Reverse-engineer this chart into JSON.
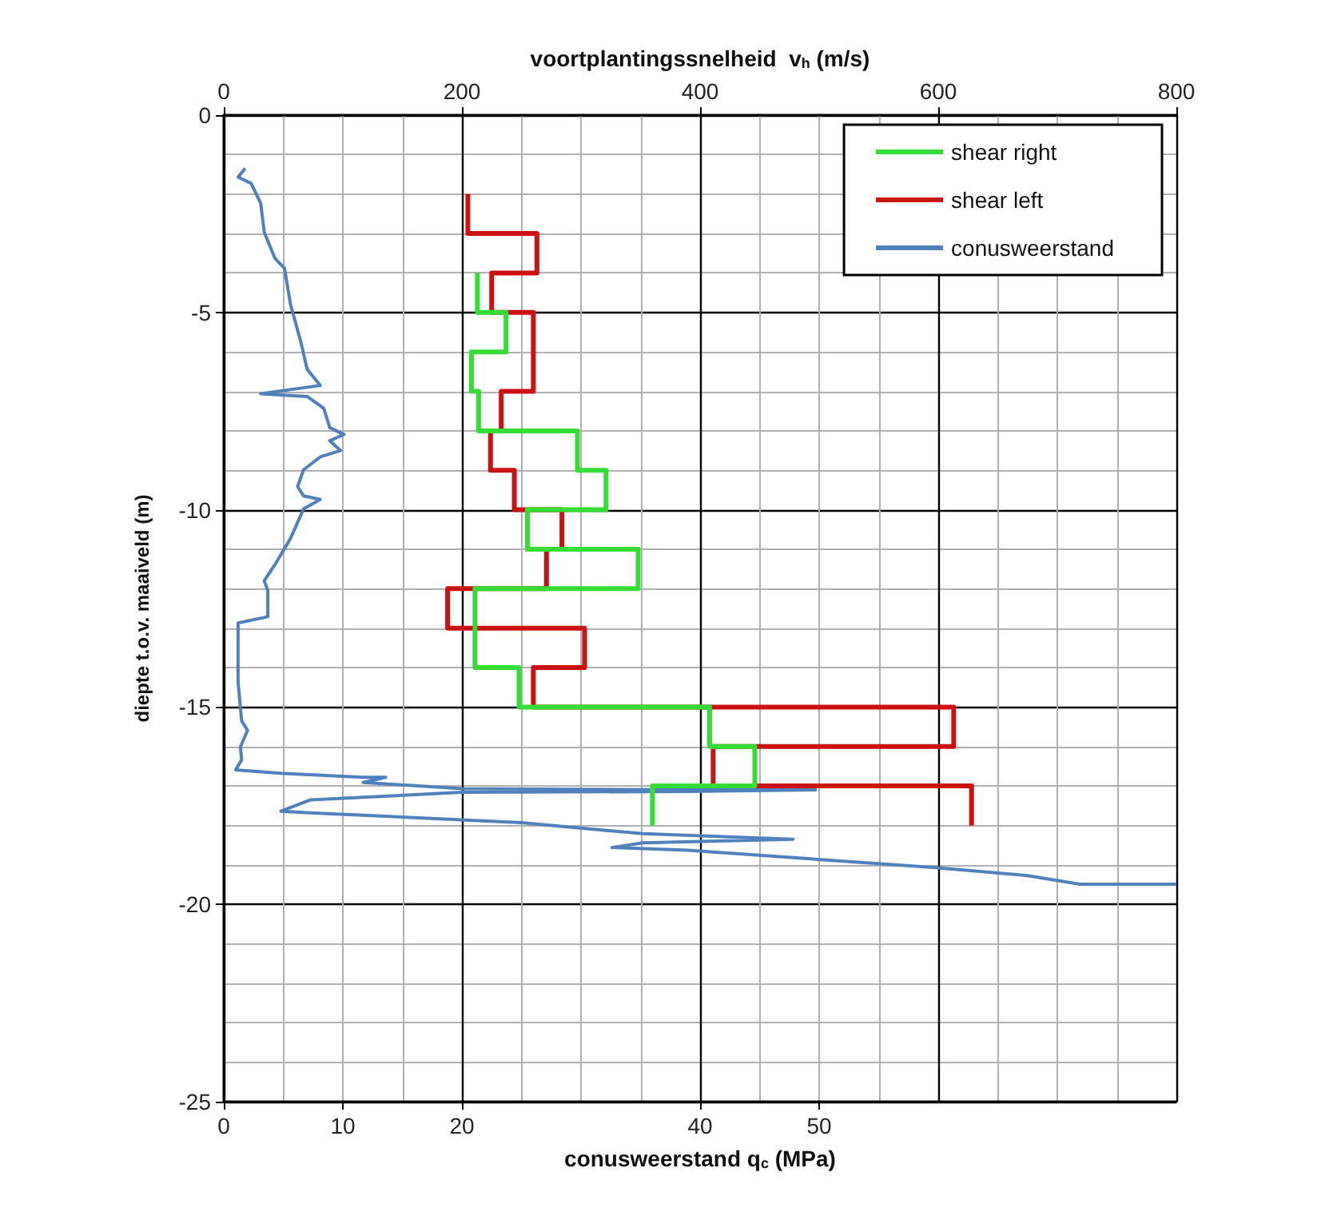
{
  "chart_data": {
    "type": "line",
    "xlabel": "conusweerstand q$_{c}$ (MPa)",
    "x2label": "voortplantingssnelheid  v$_{h}$ (m/s)",
    "ylabel": "diepte t.o.v. maaiveld (m)",
    "xlim": [
      0,
      80
    ],
    "xticks": [
      0,
      10,
      20,
      40,
      50
    ],
    "x2lim": [
      0,
      800
    ],
    "x2ticks": [
      0,
      200,
      400,
      600,
      800
    ],
    "ylim": [
      -25,
      0
    ],
    "yticks": [
      0,
      -5,
      -10,
      -15,
      -20,
      -25
    ],
    "grid": true,
    "legend": "top right",
    "series": [
      {
        "name": "shear right",
        "color": "#33dd33",
        "axis": "x2",
        "x": [
          213,
          213,
          237,
          237,
          208,
          208,
          214,
          214,
          297,
          297,
          321,
          321,
          255,
          255,
          348,
          348,
          211,
          211,
          248,
          248,
          408,
          408,
          446,
          446,
          360,
          360
        ],
        "values": [
          -4,
          -5,
          -5,
          -6,
          -6,
          -7,
          -7,
          -8,
          -8,
          -9,
          -9,
          -10,
          -10,
          -11,
          -11,
          -12,
          -12,
          -14,
          -14,
          -15,
          -15,
          -16,
          -16,
          -17,
          -17,
          -18
        ]
      },
      {
        "name": "shear left",
        "color": "#cc1111",
        "axis": "x2",
        "x": [
          205,
          205,
          263,
          263,
          225,
          225,
          260,
          260,
          233,
          233,
          224,
          224,
          244,
          244,
          284,
          284,
          271,
          271,
          188,
          188,
          303,
          303,
          260,
          260,
          613,
          613,
          411,
          411,
          628,
          628
        ],
        "values": [
          -2,
          -3,
          -3,
          -4,
          -4,
          -5,
          -5,
          -7,
          -7,
          -8,
          -8,
          -9,
          -9,
          -10,
          -10,
          -11,
          -11,
          -12,
          -12,
          -13,
          -13,
          -14,
          -14,
          -15,
          -15,
          -16,
          -16,
          -17,
          -17,
          -18
        ]
      },
      {
        "name": "conusweerstand",
        "color": "#4f81bd",
        "x": [
          1.8,
          1.2,
          2.3,
          3.1,
          3.4,
          4.3,
          5.1,
          5.6,
          6.5,
          7.0,
          8.1,
          3.1,
          7.0,
          8.4,
          8.9,
          10.1,
          8.9,
          9.8,
          8.1,
          6.7,
          6.2,
          6.7,
          8.1,
          6.7,
          5.6,
          4.3,
          3.4,
          3.7,
          3.7,
          1.2,
          1.2,
          1.5,
          2.0,
          1.4,
          1.5,
          1.0,
          4.8,
          11.7,
          13.6,
          11.7,
          20.0,
          40.2,
          49.7,
          39.0,
          20.0,
          7.3,
          4.8,
          7.3,
          25.0,
          35.2,
          47.8,
          35.2,
          32.6,
          39.0,
          59.8,
          67.5,
          71.9,
          80
        ],
        "values": [
          -1.35,
          -1.57,
          -1.73,
          -2.23,
          -2.97,
          -3.63,
          -3.88,
          -4.79,
          -5.78,
          -6.44,
          -6.85,
          -7.06,
          -7.13,
          -7.43,
          -7.92,
          -8.09,
          -8.25,
          -8.5,
          -8.66,
          -8.99,
          -9.41,
          -9.65,
          -9.74,
          -9.98,
          -10.73,
          -11.39,
          -11.8,
          -12.05,
          -12.71,
          -12.87,
          -14.36,
          -15.35,
          -15.59,
          -16.01,
          -16.34,
          -16.59,
          -16.68,
          -16.78,
          -16.78,
          -16.91,
          -17.07,
          -17.1,
          -17.1,
          -17.14,
          -17.16,
          -17.35,
          -17.64,
          -17.68,
          -17.93,
          -18.21,
          -18.35,
          -18.44,
          -18.56,
          -18.63,
          -19.07,
          -19.27,
          -19.49,
          -19.49
        ]
      }
    ]
  }
}
